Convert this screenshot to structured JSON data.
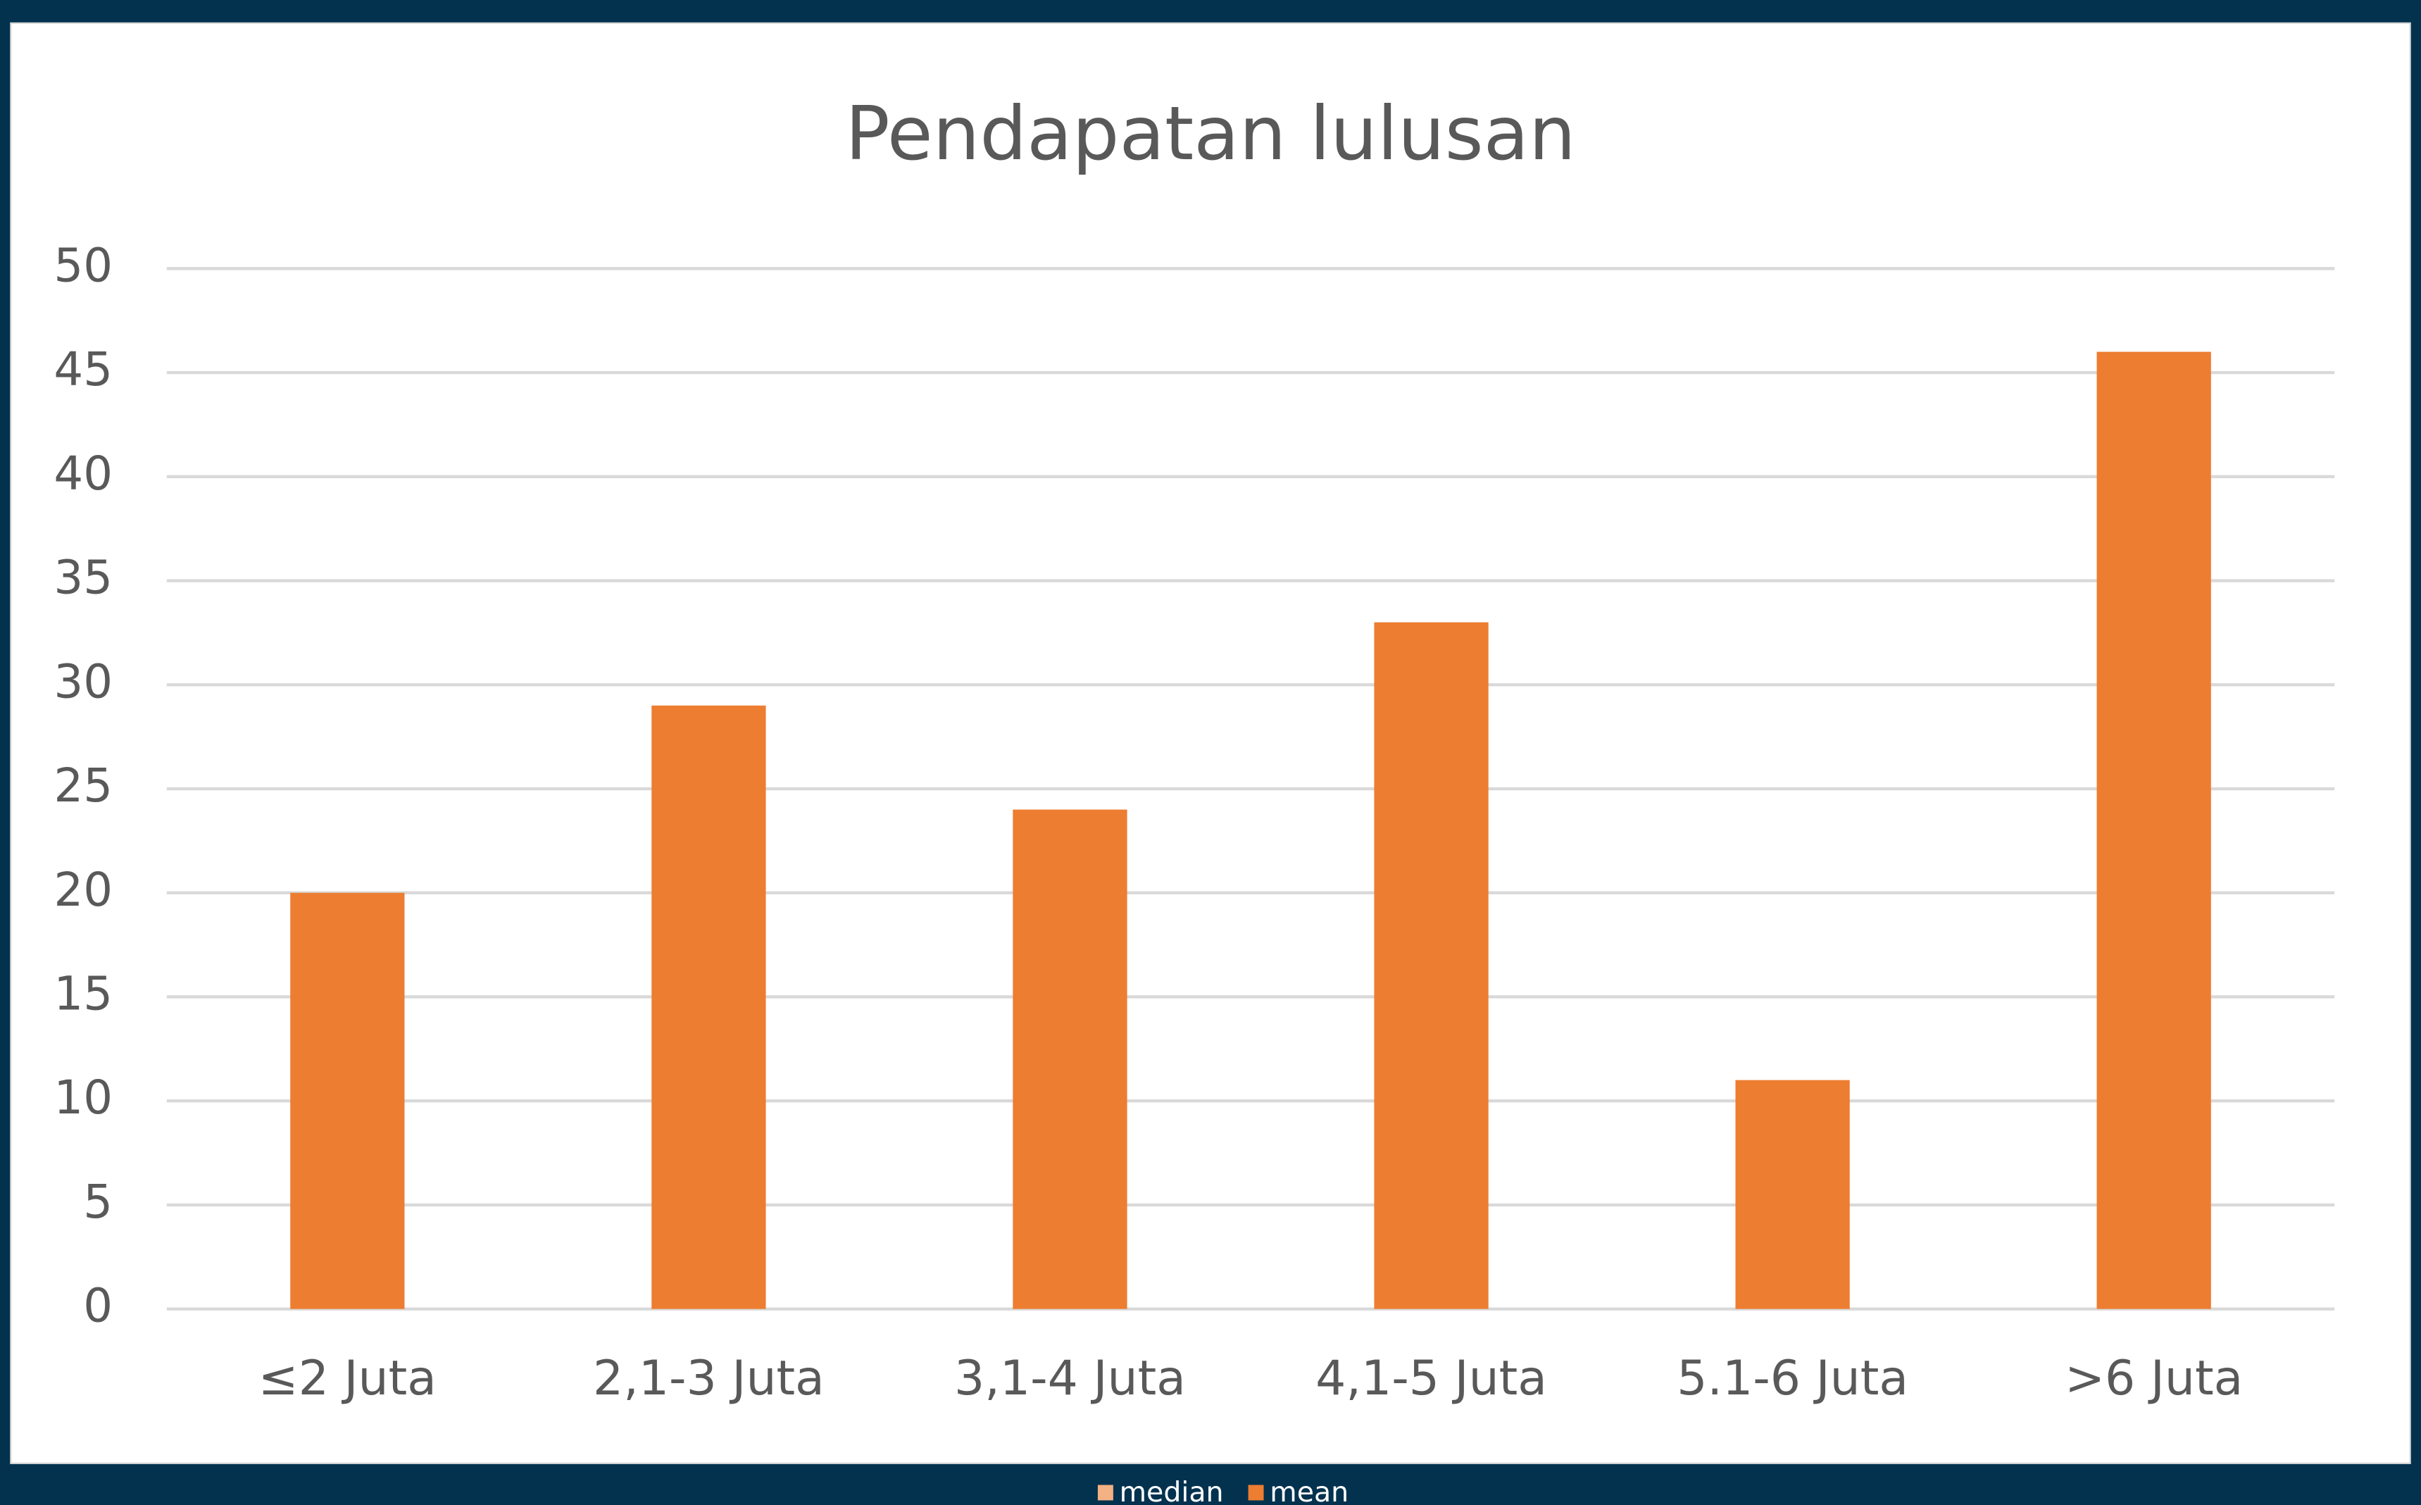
{
  "chart_data": {
    "type": "bar",
    "title": "Pendapatan lulusan",
    "categories": [
      "≤2 Juta",
      "2,1-3 Juta",
      "3,1-4 Juta",
      "4,1-5 Juta",
      "5.1-6 Juta",
      ">6 Juta"
    ],
    "series": [
      {
        "name": "median",
        "color": "#f4b183",
        "values": [
          null,
          null,
          null,
          null,
          null,
          null
        ]
      },
      {
        "name": "mean",
        "color": "#ed7d31",
        "values": [
          20,
          29,
          24,
          33,
          11,
          46
        ]
      }
    ],
    "ylim": [
      0,
      50
    ],
    "yticks": [
      0,
      5,
      10,
      15,
      20,
      25,
      30,
      35,
      40,
      45,
      50
    ],
    "grid": true,
    "legend": "bottom"
  }
}
